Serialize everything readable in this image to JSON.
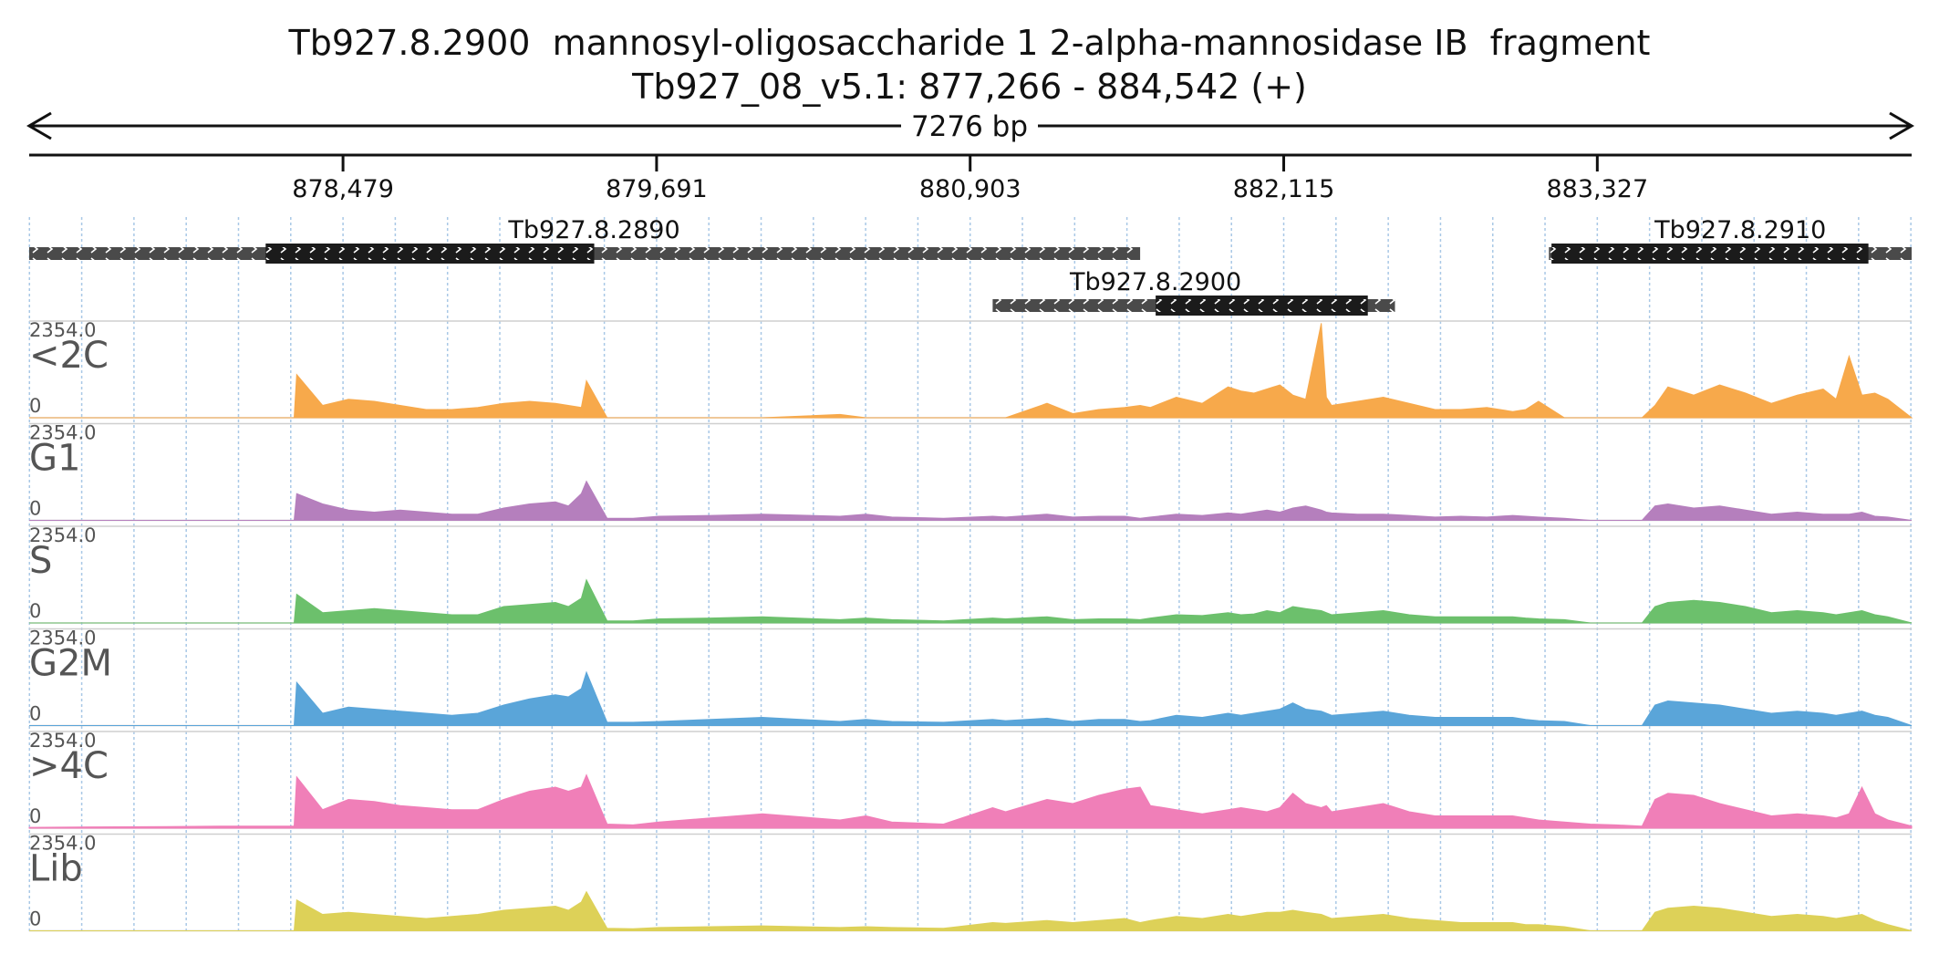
{
  "header": {
    "title": "Tb927.8.2900  mannosyl-oligosaccharide 1 2-alpha-mannosidase IB  fragment",
    "subtitle": "Tb927_08_v5.1: 877,266 - 884,542 (+)"
  },
  "chart_data": {
    "type": "area",
    "genomic_range": {
      "chrom": "Tb927_08_v5.1",
      "start": 877266,
      "end": 884542,
      "strand": "+"
    },
    "span_label": "7276 bp",
    "ticks": [
      {
        "pos": 878479,
        "label": "878,479"
      },
      {
        "pos": 879691,
        "label": "879,691"
      },
      {
        "pos": 880903,
        "label": "880,903"
      },
      {
        "pos": 882115,
        "label": "882,115"
      },
      {
        "pos": 883327,
        "label": "883,327"
      }
    ],
    "genes": [
      {
        "name": "Tb927.8.2890",
        "row": 0,
        "start": 877266,
        "end": 881560,
        "cds_start": 878180,
        "cds_end": 879450,
        "label_pos": 879450
      },
      {
        "name": "Tb927.8.2910",
        "row": 0,
        "start": 883140,
        "end": 884542,
        "cds_start": 883150,
        "cds_end": 884375,
        "label_pos": 883880
      },
      {
        "name": "Tb927.8.2900",
        "row": 1,
        "start": 880990,
        "end": 882545,
        "cds_start": 881620,
        "cds_end": 882440,
        "label_pos": 881620
      }
    ],
    "tracks": [
      {
        "name": "<2C",
        "max_label": "2354.0",
        "min_label": "0",
        "ymax": 2354,
        "color": "#f7a94b"
      },
      {
        "name": "G1",
        "max_label": "2354.0",
        "min_label": "0",
        "ymax": 2354,
        "color": "#b57fbd"
      },
      {
        "name": "S",
        "max_label": "2354.0",
        "min_label": "0",
        "ymax": 2354,
        "color": "#6cc06c"
      },
      {
        "name": "G2M",
        "max_label": "2354.0",
        "min_label": "0",
        "ymax": 2354,
        "color": "#5aa5d9"
      },
      {
        "name": ">4C",
        "max_label": "2354.0",
        "min_label": "0",
        "ymax": 2354,
        "color": "#f07fb8"
      },
      {
        "name": "Lib",
        "max_label": "2354.0",
        "min_label": "0",
        "ymax": 2354,
        "color": "#ddd158"
      }
    ],
    "coverage": {
      "x": [
        877266,
        877500,
        877800,
        878000,
        878290,
        878300,
        878400,
        878500,
        878600,
        878700,
        878800,
        878900,
        879000,
        879100,
        879200,
        879300,
        879350,
        879400,
        879420,
        879500,
        879600,
        879700,
        879900,
        880100,
        880400,
        880500,
        880600,
        880800,
        880990,
        881040,
        881200,
        881300,
        881400,
        881500,
        881560,
        881600,
        881700,
        881800,
        881900,
        881950,
        882000,
        882050,
        882100,
        882150,
        882200,
        882260,
        882280,
        882300,
        882400,
        882500,
        882600,
        882700,
        882800,
        882900,
        883000,
        883050,
        883100,
        883200,
        883300,
        883400,
        883500,
        883550,
        883600,
        883700,
        883800,
        883900,
        884000,
        884100,
        884200,
        884250,
        884300,
        884350,
        884400,
        884450,
        884542
      ],
      "series": [
        {
          "name": "<2C",
          "values": [
            0,
            0,
            0,
            0,
            0,
            1050,
            300,
            450,
            400,
            300,
            200,
            200,
            250,
            350,
            400,
            350,
            300,
            250,
            900,
            0,
            0,
            0,
            0,
            0,
            80,
            0,
            0,
            0,
            0,
            0,
            350,
            100,
            200,
            250,
            300,
            250,
            500,
            350,
            750,
            650,
            600,
            700,
            800,
            550,
            450,
            2300,
            500,
            300,
            400,
            500,
            350,
            200,
            200,
            250,
            150,
            200,
            400,
            0,
            0,
            0,
            0,
            300,
            750,
            550,
            800,
            600,
            350,
            550,
            700,
            450,
            1500,
            550,
            600,
            450,
            0
          ]
        },
        {
          "name": "G1",
          "values": [
            0,
            0,
            0,
            0,
            0,
            650,
            400,
            250,
            200,
            250,
            200,
            150,
            150,
            300,
            400,
            450,
            350,
            650,
            950,
            50,
            50,
            100,
            120,
            150,
            100,
            150,
            80,
            50,
            100,
            80,
            150,
            80,
            100,
            100,
            50,
            80,
            150,
            120,
            180,
            150,
            200,
            250,
            200,
            300,
            350,
            250,
            200,
            180,
            150,
            150,
            120,
            80,
            100,
            80,
            120,
            100,
            80,
            50,
            0,
            0,
            0,
            350,
            400,
            300,
            350,
            250,
            150,
            200,
            150,
            150,
            150,
            200,
            100,
            80,
            0
          ]
        },
        {
          "name": "S",
          "values": [
            0,
            0,
            0,
            0,
            0,
            700,
            250,
            300,
            350,
            300,
            250,
            200,
            200,
            400,
            450,
            500,
            400,
            600,
            1050,
            50,
            50,
            100,
            120,
            150,
            80,
            120,
            80,
            50,
            120,
            100,
            150,
            80,
            100,
            100,
            80,
            120,
            200,
            180,
            250,
            200,
            220,
            300,
            250,
            400,
            350,
            300,
            250,
            200,
            250,
            300,
            200,
            150,
            150,
            150,
            150,
            120,
            100,
            80,
            0,
            0,
            0,
            400,
            500,
            550,
            500,
            400,
            250,
            300,
            250,
            200,
            250,
            300,
            200,
            150,
            0
          ]
        },
        {
          "name": "G2M",
          "values": [
            0,
            0,
            0,
            0,
            0,
            1050,
            300,
            450,
            400,
            350,
            300,
            250,
            300,
            500,
            650,
            750,
            700,
            900,
            1300,
            80,
            80,
            100,
            150,
            200,
            100,
            150,
            100,
            80,
            150,
            120,
            180,
            100,
            150,
            150,
            100,
            120,
            250,
            200,
            300,
            250,
            300,
            350,
            400,
            550,
            400,
            350,
            300,
            250,
            300,
            350,
            250,
            200,
            200,
            200,
            200,
            150,
            120,
            100,
            0,
            0,
            0,
            500,
            600,
            550,
            500,
            400,
            300,
            350,
            300,
            250,
            300,
            350,
            250,
            200,
            0
          ]
        },
        {
          "name": ">4C",
          "values": [
            20,
            30,
            40,
            50,
            50,
            1250,
            450,
            700,
            650,
            550,
            500,
            450,
            450,
            700,
            900,
            1000,
            900,
            1000,
            1300,
            100,
            80,
            150,
            250,
            350,
            200,
            300,
            150,
            100,
            500,
            400,
            700,
            600,
            800,
            950,
            1000,
            550,
            450,
            350,
            450,
            500,
            450,
            400,
            500,
            850,
            600,
            500,
            550,
            400,
            500,
            600,
            400,
            300,
            300,
            300,
            300,
            250,
            200,
            150,
            100,
            80,
            50,
            700,
            850,
            800,
            600,
            450,
            300,
            350,
            300,
            250,
            350,
            1000,
            350,
            200,
            50
          ]
        },
        {
          "name": "Lib",
          "values": [
            0,
            0,
            0,
            0,
            0,
            750,
            400,
            450,
            400,
            350,
            300,
            350,
            400,
            500,
            550,
            600,
            500,
            700,
            950,
            60,
            50,
            80,
            100,
            120,
            80,
            100,
            80,
            60,
            200,
            180,
            250,
            200,
            250,
            300,
            200,
            250,
            350,
            300,
            400,
            350,
            400,
            450,
            450,
            500,
            450,
            400,
            350,
            300,
            350,
            400,
            300,
            250,
            200,
            200,
            200,
            150,
            150,
            100,
            0,
            0,
            0,
            450,
            550,
            600,
            550,
            450,
            350,
            400,
            350,
            300,
            350,
            400,
            250,
            150,
            0
          ]
        }
      ]
    }
  }
}
